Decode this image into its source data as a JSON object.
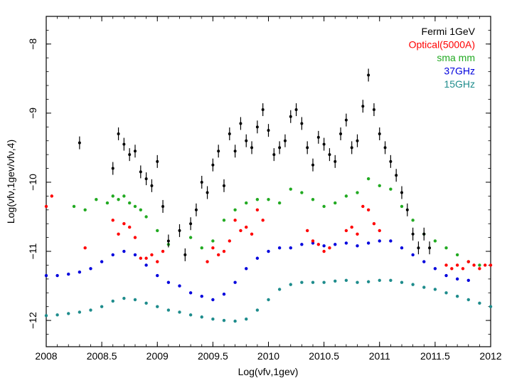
{
  "chart_data": {
    "type": "scatter",
    "title": "",
    "xlabel": "Log(νfν,1gev)",
    "ylabel": "Log(νfν,1gev/νfν,4)",
    "xlim": [
      2008,
      2012
    ],
    "ylim": [
      -12.38,
      -7.6
    ],
    "xticks": [
      2008,
      2008.5,
      2009,
      2009.5,
      2010,
      2010.5,
      2011,
      2011.5,
      2012
    ],
    "xtick_labels": [
      "2008",
      "2008.5",
      "2009",
      "2009.5",
      "2010",
      "2010.5",
      "2011",
      "2011.5",
      "2012"
    ],
    "yticks": [
      -12,
      -11,
      -10,
      -9,
      -8
    ],
    "ytick_labels": [
      "−12",
      "−11",
      "−10",
      "−9",
      "−8"
    ],
    "legend_position": "top-right",
    "series": [
      {
        "name": "Fermi 1GeV",
        "color": "#000000",
        "marker": "errorbar",
        "x": [
          2008.3,
          2008.6,
          2008.65,
          2008.7,
          2008.75,
          2008.8,
          2008.85,
          2008.9,
          2008.95,
          2009.0,
          2009.05,
          2009.1,
          2009.2,
          2009.25,
          2009.3,
          2009.35,
          2009.4,
          2009.45,
          2009.5,
          2009.55,
          2009.6,
          2009.65,
          2009.7,
          2009.75,
          2009.8,
          2009.85,
          2009.9,
          2009.95,
          2010.0,
          2010.05,
          2010.1,
          2010.15,
          2010.2,
          2010.25,
          2010.3,
          2010.35,
          2010.4,
          2010.45,
          2010.5,
          2010.55,
          2010.6,
          2010.65,
          2010.7,
          2010.75,
          2010.8,
          2010.85,
          2010.9,
          2010.95,
          2011.0,
          2011.05,
          2011.1,
          2011.15,
          2011.2,
          2011.25,
          2011.3,
          2011.35,
          2011.4,
          2011.45
        ],
        "y": [
          -9.43,
          -9.8,
          -9.3,
          -9.45,
          -9.6,
          -9.55,
          -9.85,
          -9.95,
          -10.05,
          -9.7,
          -10.35,
          -10.85,
          -10.7,
          -11.05,
          -10.6,
          -10.4,
          -10.0,
          -10.15,
          -9.75,
          -9.55,
          -10.05,
          -9.3,
          -9.55,
          -9.15,
          -9.4,
          -9.5,
          -9.2,
          -8.95,
          -9.25,
          -9.6,
          -9.5,
          -9.4,
          -9.05,
          -8.95,
          -9.15,
          -9.5,
          -9.75,
          -9.35,
          -9.45,
          -9.6,
          -9.7,
          -9.3,
          -9.1,
          -9.5,
          -9.4,
          -8.9,
          -8.45,
          -8.95,
          -9.3,
          -9.5,
          -9.7,
          -9.9,
          -10.15,
          -10.4,
          -10.75,
          -10.95,
          -10.75,
          -10.95
        ]
      },
      {
        "name": "Optical(5000A)",
        "color": "#ff0000",
        "marker": "dot",
        "x": [
          2008.0,
          2008.05,
          2008.35,
          2008.6,
          2008.65,
          2008.7,
          2008.75,
          2008.8,
          2008.85,
          2008.9,
          2008.95,
          2009.0,
          2009.05,
          2009.45,
          2009.5,
          2009.55,
          2009.6,
          2009.65,
          2009.7,
          2009.75,
          2009.8,
          2009.85,
          2009.9,
          2009.95,
          2010.35,
          2010.4,
          2010.45,
          2010.5,
          2010.55,
          2010.7,
          2010.75,
          2010.8,
          2010.85,
          2010.9,
          2010.95,
          2011.0,
          2011.6,
          2011.65,
          2011.7,
          2011.75,
          2011.8,
          2011.85,
          2011.9,
          2011.95,
          2012.0
        ],
        "y": [
          -10.35,
          -10.2,
          -10.95,
          -10.55,
          -10.75,
          -10.6,
          -10.65,
          -10.8,
          -11.1,
          -11.1,
          -11.05,
          -11.15,
          -11.0,
          -11.15,
          -10.95,
          -11.05,
          -11.0,
          -10.85,
          -10.55,
          -10.7,
          -10.65,
          -10.75,
          -10.4,
          -10.55,
          -10.7,
          -10.85,
          -10.9,
          -11.0,
          -10.95,
          -10.7,
          -10.65,
          -10.75,
          -10.35,
          -10.4,
          -10.6,
          -10.7,
          -11.2,
          -11.25,
          -11.2,
          -11.25,
          -11.15,
          -11.2,
          -11.25,
          -11.2,
          -11.2
        ]
      },
      {
        "name": "sma mm",
        "color": "#22aa22",
        "marker": "dot",
        "x": [
          2008.25,
          2008.35,
          2008.45,
          2008.55,
          2008.6,
          2008.65,
          2008.7,
          2008.75,
          2008.8,
          2008.85,
          2008.9,
          2009.0,
          2009.1,
          2009.3,
          2009.4,
          2009.5,
          2009.6,
          2009.7,
          2009.8,
          2009.9,
          2010.0,
          2010.1,
          2010.2,
          2010.3,
          2010.4,
          2010.5,
          2010.6,
          2010.7,
          2010.8,
          2010.9,
          2011.0,
          2011.1,
          2011.2,
          2011.3,
          2011.4,
          2011.5,
          2011.6,
          2011.7,
          2011.8,
          2011.9
        ],
        "y": [
          -10.35,
          -10.4,
          -10.25,
          -10.3,
          -10.2,
          -10.25,
          -10.2,
          -10.3,
          -10.35,
          -10.4,
          -10.5,
          -10.7,
          -10.9,
          -10.8,
          -10.95,
          -10.85,
          -10.55,
          -10.4,
          -10.3,
          -10.25,
          -10.25,
          -10.3,
          -10.1,
          -10.15,
          -10.25,
          -10.35,
          -10.3,
          -10.2,
          -10.15,
          -9.95,
          -10.05,
          -10.1,
          -10.35,
          -10.55,
          -10.75,
          -10.85,
          -10.95,
          -11.05,
          -11.15,
          -11.2
        ]
      },
      {
        "name": "37GHz",
        "color": "#0000dd",
        "marker": "dot",
        "x": [
          2008.0,
          2008.1,
          2008.2,
          2008.3,
          2008.4,
          2008.5,
          2008.6,
          2008.7,
          2008.8,
          2008.9,
          2009.0,
          2009.1,
          2009.2,
          2009.3,
          2009.4,
          2009.5,
          2009.6,
          2009.7,
          2009.8,
          2009.9,
          2010.0,
          2010.1,
          2010.2,
          2010.3,
          2010.4,
          2010.5,
          2010.6,
          2010.7,
          2010.8,
          2010.9,
          2011.0,
          2011.1,
          2011.2,
          2011.3,
          2011.4,
          2011.5,
          2011.6,
          2011.7,
          2011.8
        ],
        "y": [
          -11.35,
          -11.35,
          -11.33,
          -11.3,
          -11.25,
          -11.15,
          -11.05,
          -11.0,
          -11.05,
          -11.2,
          -11.35,
          -11.45,
          -11.5,
          -11.6,
          -11.65,
          -11.7,
          -11.62,
          -11.45,
          -11.25,
          -11.1,
          -11.0,
          -10.95,
          -10.95,
          -10.9,
          -10.88,
          -10.92,
          -10.9,
          -10.88,
          -10.92,
          -10.88,
          -10.85,
          -10.85,
          -10.95,
          -11.05,
          -11.15,
          -11.25,
          -11.35,
          -11.4,
          -11.42
        ]
      },
      {
        "name": "15GHz",
        "color": "#1e8c8c",
        "marker": "dot",
        "x": [
          2008.0,
          2008.1,
          2008.2,
          2008.3,
          2008.4,
          2008.5,
          2008.6,
          2008.7,
          2008.8,
          2008.9,
          2009.0,
          2009.1,
          2009.2,
          2009.3,
          2009.4,
          2009.5,
          2009.6,
          2009.7,
          2009.8,
          2009.9,
          2010.0,
          2010.1,
          2010.2,
          2010.3,
          2010.4,
          2010.5,
          2010.6,
          2010.7,
          2010.8,
          2010.9,
          2011.0,
          2011.1,
          2011.2,
          2011.3,
          2011.4,
          2011.5,
          2011.6,
          2011.7,
          2011.8,
          2011.9,
          2012.0
        ],
        "y": [
          -11.93,
          -11.92,
          -11.9,
          -11.88,
          -11.85,
          -11.8,
          -11.72,
          -11.68,
          -11.7,
          -11.75,
          -11.8,
          -11.85,
          -11.88,
          -11.92,
          -11.95,
          -11.98,
          -12.0,
          -12.01,
          -11.98,
          -11.85,
          -11.7,
          -11.55,
          -11.48,
          -11.45,
          -11.45,
          -11.45,
          -11.43,
          -11.42,
          -11.45,
          -11.44,
          -11.42,
          -11.42,
          -11.45,
          -11.48,
          -11.52,
          -11.55,
          -11.6,
          -11.65,
          -11.7,
          -11.75,
          -11.8
        ]
      }
    ]
  }
}
